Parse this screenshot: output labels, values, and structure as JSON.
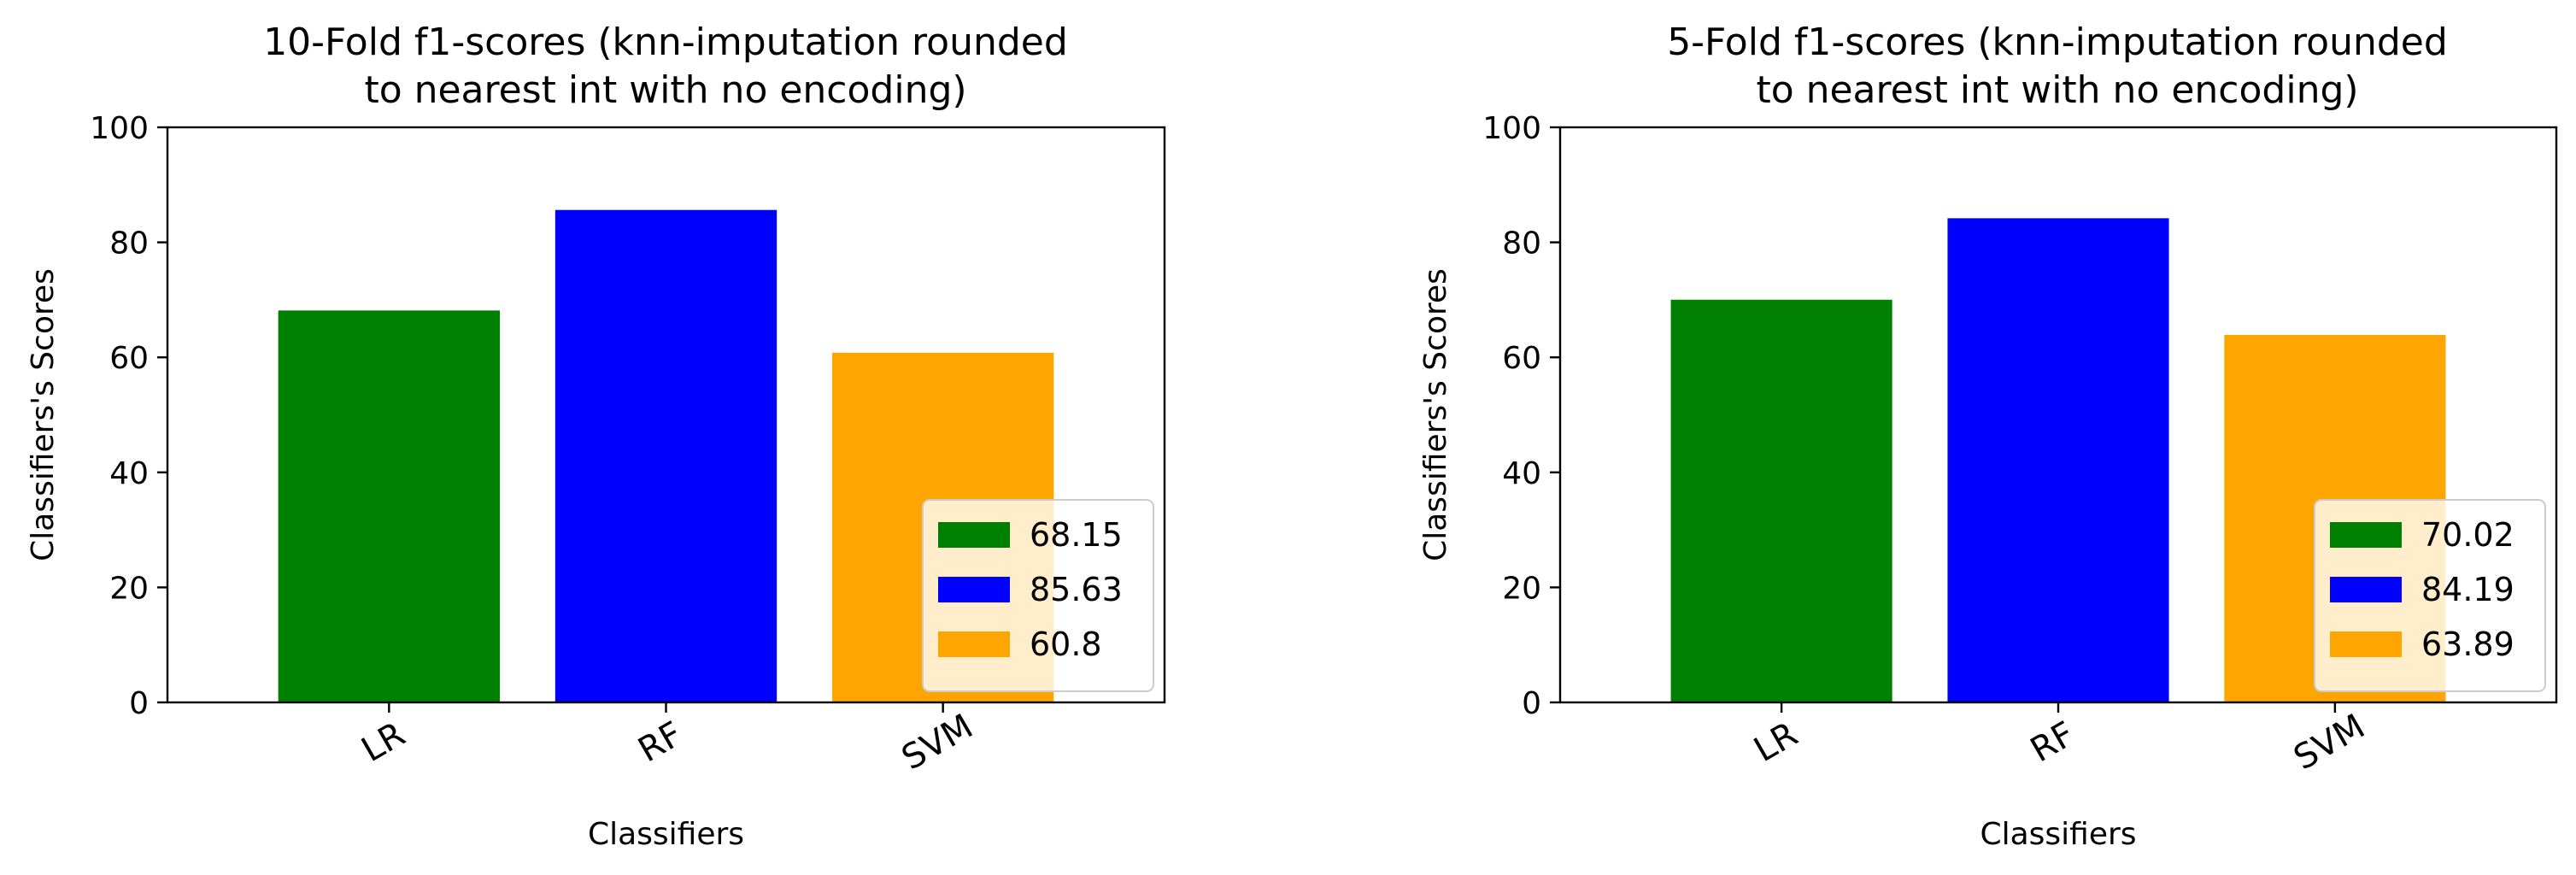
{
  "chart_data": [
    {
      "type": "bar",
      "title": "10-Fold f1-scores (knn-imputation rounded\nto nearest int with no encoding)",
      "xlabel": "Classifiers",
      "ylabel": "Classifiers's Scores",
      "categories": [
        "LR",
        "RF",
        "SVM"
      ],
      "values": [
        68.15,
        85.63,
        60.8
      ],
      "colors": [
        "#008000",
        "#0000ff",
        "#ffa500"
      ],
      "ylim": [
        0,
        100
      ],
      "yticks": [
        0,
        20,
        40,
        60,
        80,
        100
      ],
      "legend": {
        "position": "lower-right",
        "entries": [
          "68.15",
          "85.63",
          "60.8"
        ]
      },
      "grid": false
    },
    {
      "type": "bar",
      "title": "5-Fold f1-scores (knn-imputation rounded\nto nearest int with no encoding)",
      "xlabel": "Classifiers",
      "ylabel": "Classifiers's Scores",
      "categories": [
        "LR",
        "RF",
        "SVM"
      ],
      "values": [
        70.02,
        84.19,
        63.89
      ],
      "colors": [
        "#008000",
        "#0000ff",
        "#ffa500"
      ],
      "ylim": [
        0,
        100
      ],
      "yticks": [
        0,
        20,
        40,
        60,
        80,
        100
      ],
      "legend": {
        "position": "lower-right",
        "entries": [
          "70.02",
          "84.19",
          "63.89"
        ]
      },
      "grid": false
    }
  ]
}
